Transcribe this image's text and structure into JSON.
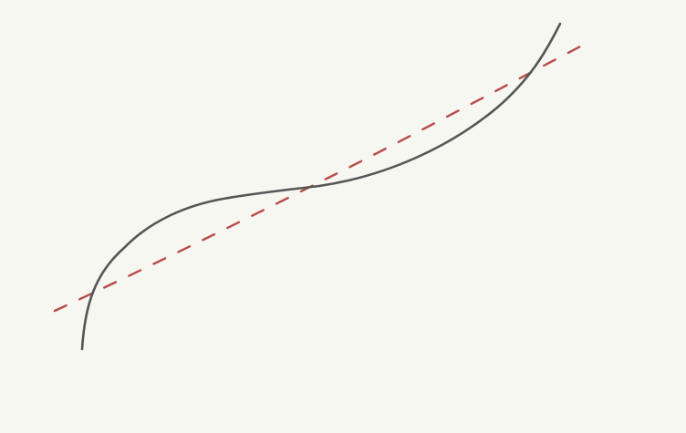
{
  "sketch": {
    "background": "#f7f7f2",
    "curve": {
      "name": "solid-curve",
      "color": "#555555"
    },
    "line": {
      "name": "dashed-line",
      "color": "#b94a4a"
    }
  }
}
